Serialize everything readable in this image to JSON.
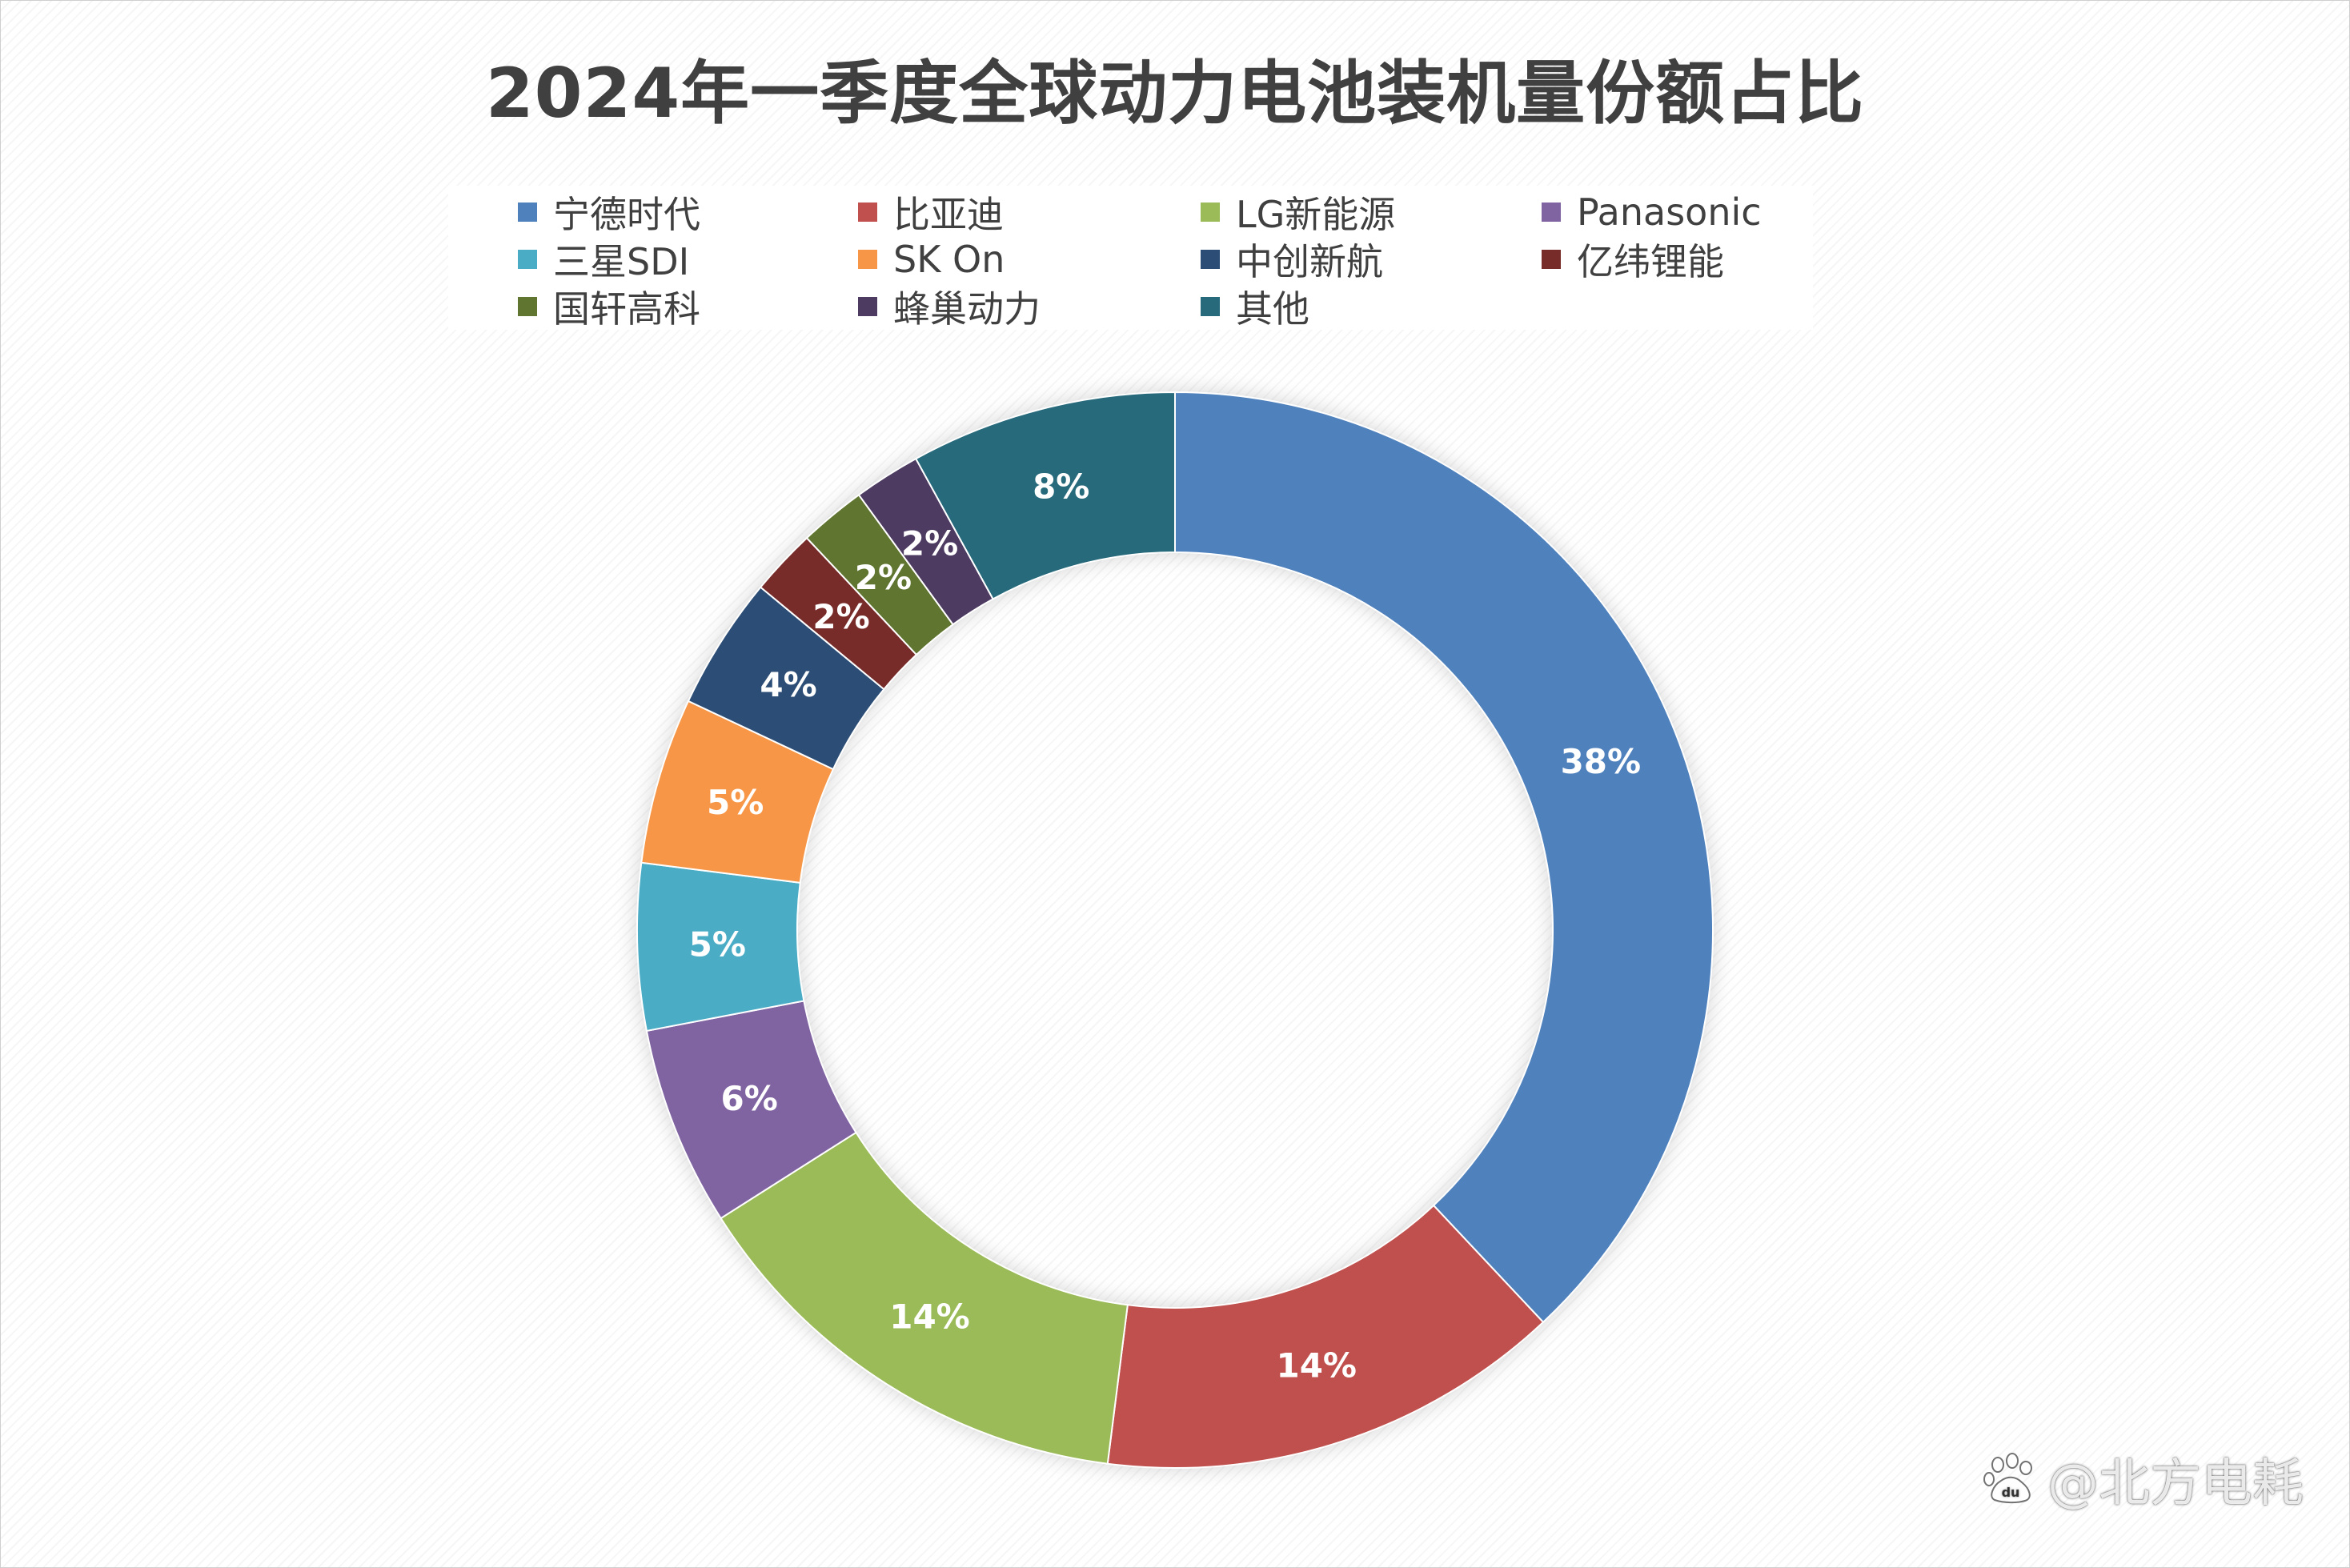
{
  "chart_data": {
    "type": "pie",
    "style": "donut",
    "title": "2024年一季度全球动力电池装机量份额占比",
    "legend_position": "top",
    "slices": [
      {
        "label": "宁德时代",
        "value": 38,
        "value_label": "38%",
        "color": "#4f81bd"
      },
      {
        "label": "比亚迪",
        "value": 14,
        "value_label": "14%",
        "color": "#c0504d"
      },
      {
        "label": "LG新能源",
        "value": 14,
        "value_label": "14%",
        "color": "#9bbb59"
      },
      {
        "label": "Panasonic",
        "value": 6,
        "value_label": "6%",
        "color": "#8064a2"
      },
      {
        "label": "三星SDI",
        "value": 5,
        "value_label": "5%",
        "color": "#4bacc6"
      },
      {
        "label": "SK On",
        "value": 5,
        "value_label": "5%",
        "color": "#f79646"
      },
      {
        "label": "中创新航",
        "value": 4,
        "value_label": "4%",
        "color": "#2c4d75"
      },
      {
        "label": "亿纬锂能",
        "value": 2,
        "value_label": "2%",
        "color": "#772c2a"
      },
      {
        "label": "国轩高科",
        "value": 2,
        "value_label": "2%",
        "color": "#5f7530"
      },
      {
        "label": "蜂巢动力",
        "value": 2,
        "value_label": "2%",
        "color": "#4d3b62"
      },
      {
        "label": "其他",
        "value": 8,
        "value_label": "8%",
        "color": "#276a7c"
      }
    ]
  },
  "watermark": {
    "text": "@北方电耗",
    "icon": "baidu-paw-icon"
  }
}
